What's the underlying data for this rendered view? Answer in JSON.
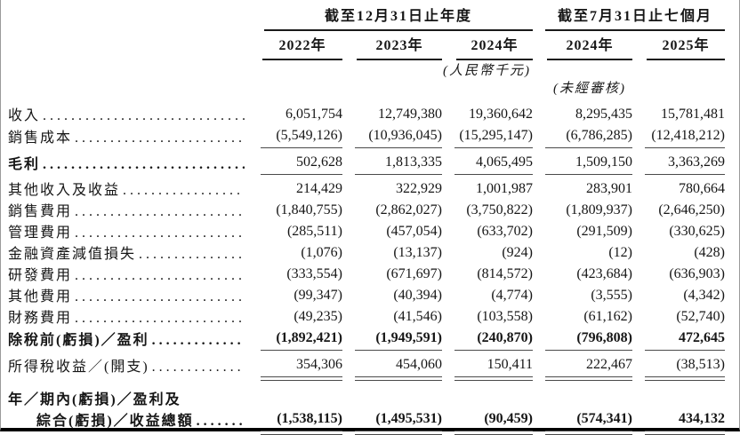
{
  "table": {
    "col_groups": [
      {
        "label": "截至12月31日止年度",
        "cols": [
          "2022年",
          "2023年",
          "2024年"
        ]
      },
      {
        "label": "截至7月31日止七個月",
        "cols": [
          "2024年",
          "2025年"
        ]
      }
    ],
    "notes": {
      "unit": "(人民幣千元)",
      "unaudited": "(未經審核)"
    },
    "rows": [
      {
        "label": "收入",
        "values": [
          "6,051,754",
          "12,749,380",
          "19,360,642",
          "8,295,435",
          "15,781,481"
        ],
        "label_bold": false,
        "values_bold": false,
        "underline": "none"
      },
      {
        "label": "銷售成本",
        "values": [
          "(5,549,126)",
          "(10,936,045)",
          "(15,295,147)",
          "(6,786,285)",
          "(12,418,212)"
        ],
        "label_bold": false,
        "values_bold": false,
        "underline": "single"
      },
      {
        "label": "毛利",
        "values": [
          "502,628",
          "1,813,335",
          "4,065,495",
          "1,509,150",
          "3,363,269"
        ],
        "label_bold": true,
        "values_bold": false,
        "underline": "single"
      },
      {
        "label": "其他收入及收益",
        "values": [
          "214,429",
          "322,929",
          "1,001,987",
          "283,901",
          "780,664"
        ],
        "label_bold": false,
        "values_bold": false,
        "underline": "none"
      },
      {
        "label": "銷售費用",
        "values": [
          "(1,840,755)",
          "(2,862,027)",
          "(3,750,822)",
          "(1,809,937)",
          "(2,646,250)"
        ],
        "label_bold": false,
        "values_bold": false,
        "underline": "none"
      },
      {
        "label": "管理費用",
        "values": [
          "(285,511)",
          "(457,054)",
          "(633,702)",
          "(291,509)",
          "(330,625)"
        ],
        "label_bold": false,
        "values_bold": false,
        "underline": "none"
      },
      {
        "label": "金融資產減值損失",
        "values": [
          "(1,076)",
          "(13,137)",
          "(924)",
          "(12)",
          "(428)"
        ],
        "label_bold": false,
        "values_bold": false,
        "underline": "none"
      },
      {
        "label": "研發費用",
        "values": [
          "(333,554)",
          "(671,697)",
          "(814,572)",
          "(423,684)",
          "(636,903)"
        ],
        "label_bold": false,
        "values_bold": false,
        "underline": "none"
      },
      {
        "label": "其他費用",
        "values": [
          "(99,347)",
          "(40,394)",
          "(4,774)",
          "(3,555)",
          "(4,342)"
        ],
        "label_bold": false,
        "values_bold": false,
        "underline": "none"
      },
      {
        "label": "財務費用",
        "values": [
          "(49,235)",
          "(41,546)",
          "(103,558)",
          "(61,162)",
          "(52,740)"
        ],
        "label_bold": false,
        "values_bold": false,
        "underline": "none"
      },
      {
        "label": "除稅前(虧損)／盈利",
        "values": [
          "(1,892,421)",
          "(1,949,591)",
          "(240,870)",
          "(796,808)",
          "472,645"
        ],
        "label_bold": true,
        "values_bold": true,
        "underline": "single"
      },
      {
        "label": "所得稅收益／(開支)",
        "values": [
          "354,306",
          "454,060",
          "150,411",
          "222,467",
          "(38,513)"
        ],
        "label_bold": false,
        "values_bold": false,
        "underline": "double"
      },
      {
        "label": "年／期內(虧損)／盈利及",
        "label2": "綜合(虧損)／收益總額",
        "values": [
          "(1,538,115)",
          "(1,495,531)",
          "(90,459)",
          "(574,341)",
          "434,132"
        ],
        "label_bold": true,
        "values_bold": true,
        "underline": "double"
      }
    ]
  }
}
